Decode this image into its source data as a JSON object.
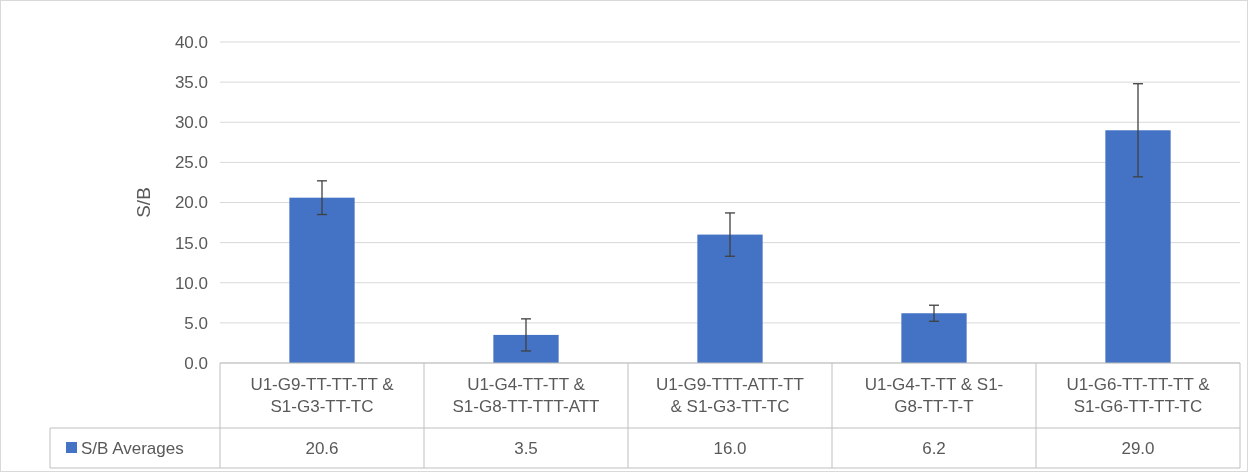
{
  "chart_data": {
    "type": "bar",
    "ylabel": "S/B",
    "categories": [
      "U1-G9-TT-TT-TT & S1-G3-TT-TC",
      "U1-G4-TT-TT & S1-G8-TT-TTT-ATT",
      "U1-G9-TTT-ATT-TT & S1-G3-TT-TC",
      "U1-G4-T-TT & S1-G8-TT-T-T",
      "U1-G6-TT-TT-TT & S1-G6-TT-TT-TC"
    ],
    "series": [
      {
        "name": "S/B Averages",
        "color": "#4472c4",
        "values": [
          20.6,
          3.5,
          16.0,
          6.2,
          29.0
        ],
        "errors": [
          2.1,
          2.0,
          2.7,
          1.0,
          5.8
        ],
        "value_labels": [
          "20.6",
          "3.5",
          "16.0",
          "6.2",
          "29.0"
        ]
      }
    ],
    "ylim": [
      0,
      40
    ],
    "yticks": [
      {
        "value": 0,
        "label": "0.0"
      },
      {
        "value": 5,
        "label": "5.0"
      },
      {
        "value": 10,
        "label": "10.0"
      },
      {
        "value": 15,
        "label": "15.0"
      },
      {
        "value": 20,
        "label": "20.0"
      },
      {
        "value": 25,
        "label": "25.0"
      },
      {
        "value": 30,
        "label": "30.0"
      },
      {
        "value": 35,
        "label": "35.0"
      },
      {
        "value": 40,
        "label": "40.0"
      }
    ],
    "grid": true,
    "legend": "bottom"
  }
}
